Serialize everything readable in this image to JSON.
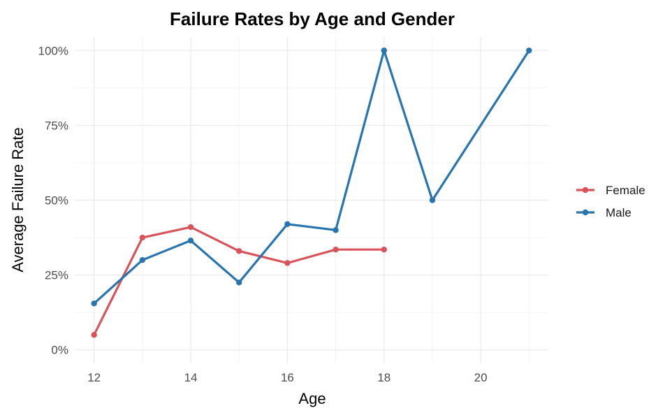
{
  "chart_data": {
    "type": "line",
    "title": "Failure Rates by Age and Gender",
    "xlabel": "Age",
    "ylabel": "Average Failure Rate",
    "xlim": [
      11.6,
      21.4
    ],
    "ylim": [
      -0.045,
      1.045
    ],
    "x_ticks": [
      12,
      14,
      16,
      18,
      20
    ],
    "x_tick_labels": [
      "12",
      "14",
      "16",
      "18",
      "20"
    ],
    "x_minor_ticks": [
      13,
      15,
      17,
      19,
      21
    ],
    "y_ticks": [
      0,
      0.25,
      0.5,
      0.75,
      1.0
    ],
    "y_tick_labels": [
      "0%",
      "25%",
      "50%",
      "75%",
      "100%"
    ],
    "y_minor_ticks": [
      0.125,
      0.375,
      0.625,
      0.875
    ],
    "grid": true,
    "legend_position": "right",
    "series": [
      {
        "name": "Female",
        "color": "#d9535a",
        "x": [
          12,
          13,
          14,
          15,
          16,
          17,
          18
        ],
        "y": [
          0.05,
          0.375,
          0.41,
          0.33,
          0.29,
          0.335,
          0.335
        ]
      },
      {
        "name": "Male",
        "color": "#2774ae",
        "x": [
          12,
          13,
          14,
          15,
          16,
          17,
          18,
          19,
          21
        ],
        "y": [
          0.155,
          0.3,
          0.365,
          0.225,
          0.42,
          0.4,
          1.0,
          0.5,
          1.0
        ]
      }
    ]
  }
}
